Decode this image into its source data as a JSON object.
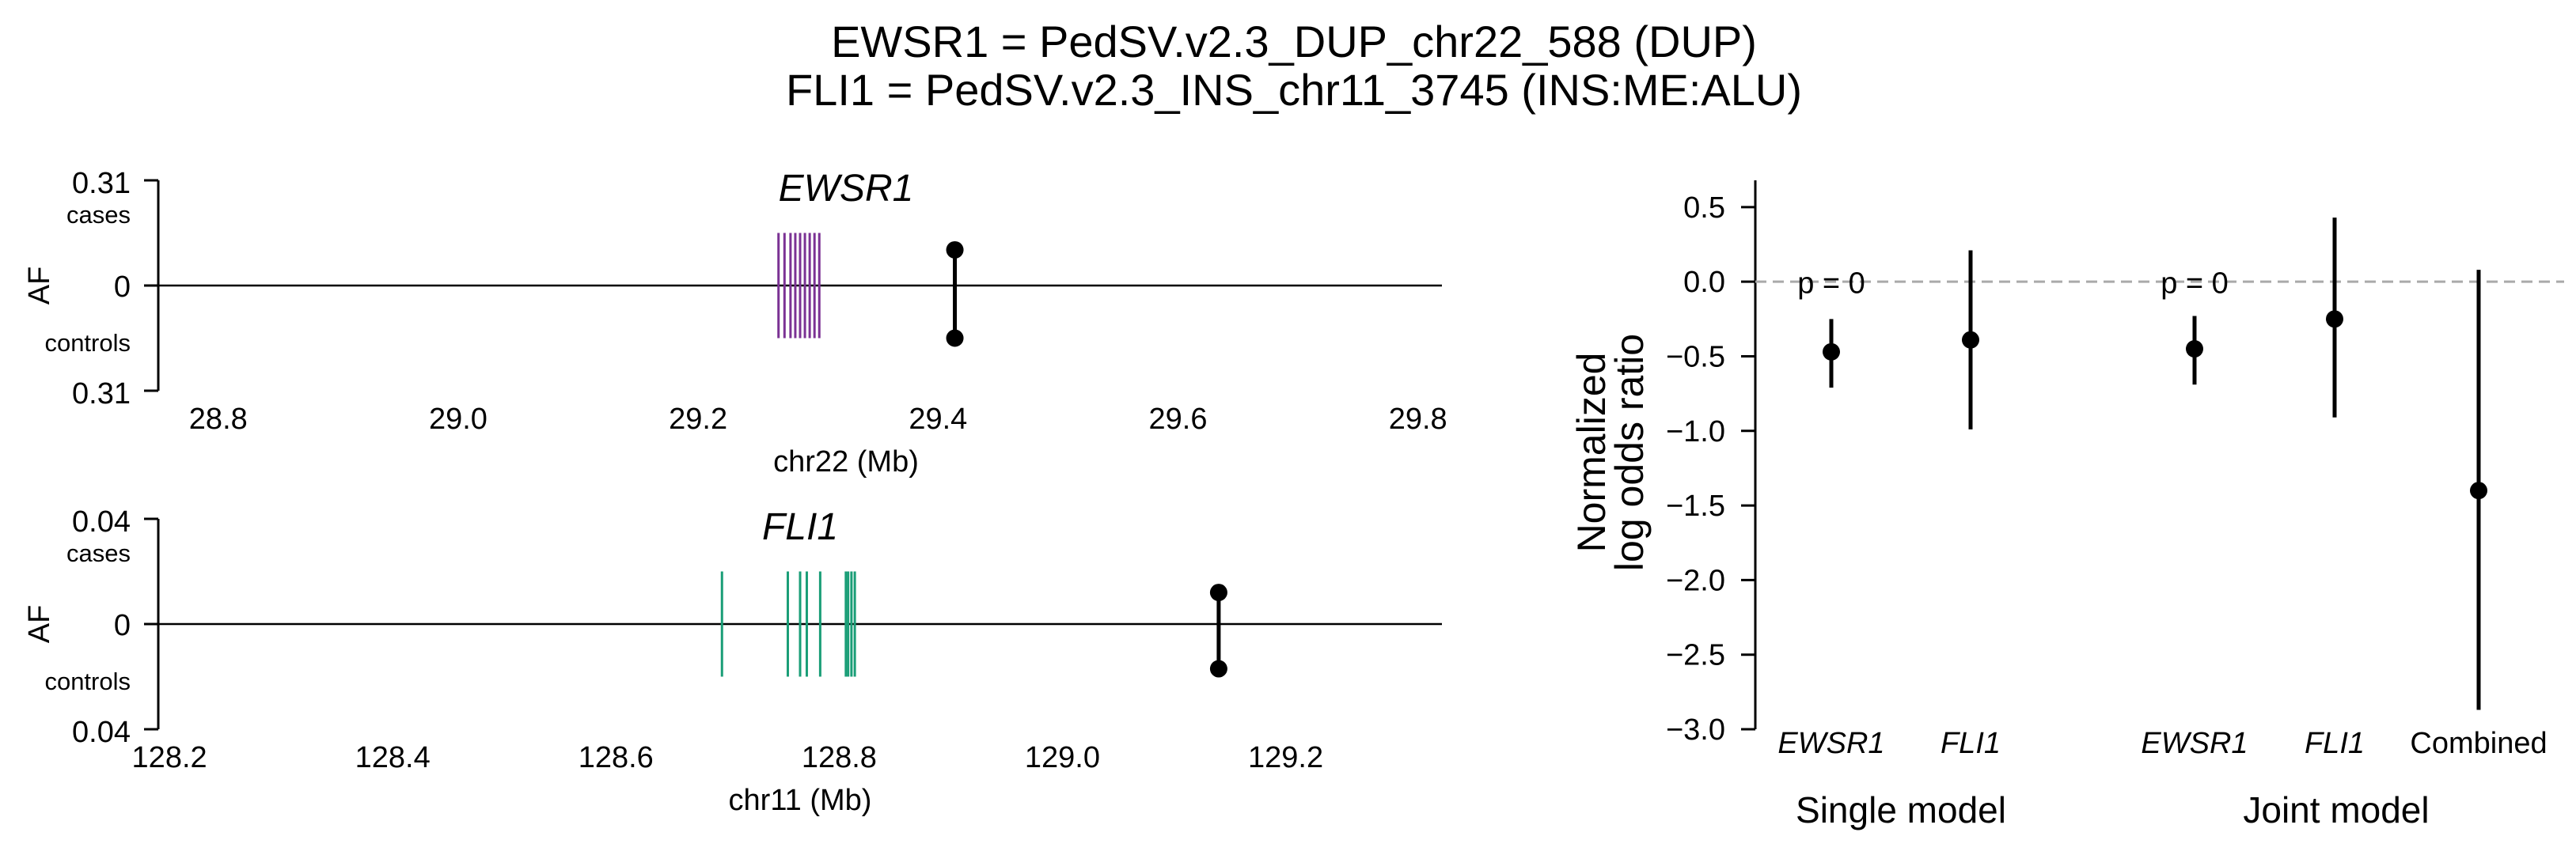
{
  "title": {
    "line1": "EWSR1 = PedSV.v2.3_DUP_chr22_588 (DUP)",
    "line2": "FLI1 = PedSV.v2.3_INS_chr11_3745 (INS:ME:ALU)"
  },
  "colors": {
    "ewsr1": "#7b3294",
    "fli1": "#1a9e77",
    "points": "#000000",
    "reference_line": "#aaaaaa"
  },
  "chart_data": [
    {
      "type": "locus",
      "gene": "EWSR1",
      "xlabel": "chr22 (Mb)",
      "ylabel": "AF",
      "y_top_label": "0.31",
      "y_zero_label": "0",
      "y_bottom_label": "0.31",
      "cases_label": "cases",
      "controls_label": "controls",
      "xlim": [
        28.75,
        29.82
      ],
      "xticks": [
        "28.8",
        "29.0",
        "29.2",
        "29.4",
        "29.6",
        "29.8"
      ],
      "af_max": 0.31,
      "gene_color": "#7b3294",
      "exons": [
        29.267,
        29.272,
        29.277,
        29.281,
        29.285,
        29.289,
        29.293,
        29.297,
        29.301
      ],
      "exon_half_height": 0.155,
      "variant": {
        "position": 29.414,
        "af_cases": 0.105,
        "af_controls": 0.155
      }
    },
    {
      "type": "locus",
      "gene": "FLI1",
      "xlabel": "chr11 (Mb)",
      "ylabel": "AF",
      "y_top_label": "0.04",
      "y_zero_label": "0",
      "y_bottom_label": "0.04",
      "cases_label": "cases",
      "controls_label": "controls",
      "xlim": [
        128.19,
        129.34
      ],
      "xticks": [
        "128.2",
        "128.4",
        "128.6",
        "128.8",
        "129.0",
        "129.2"
      ],
      "af_max": 0.04,
      "gene_color": "#1a9e77",
      "exons": [
        128.695,
        128.754,
        128.765,
        128.771,
        128.783,
        128.806,
        128.808,
        128.811,
        128.814
      ],
      "exon_half_height": 0.02,
      "variant": {
        "position": 129.14,
        "af_cases": 0.012,
        "af_controls": 0.017
      }
    },
    {
      "type": "errorbar",
      "ylabel_line1": "Normalized",
      "ylabel_line2": "log odds ratio",
      "ylim": [
        -3.0,
        0.6
      ],
      "yticks": [
        "0.5",
        "0.0",
        "−0.5",
        "−1.0",
        "−1.5",
        "−2.0",
        "−2.5",
        "−3.0"
      ],
      "reference_line": 0.0,
      "categories": [
        "EWSR1",
        "FLI1",
        "EWSR1",
        "FLI1",
        "Combined"
      ],
      "italic": [
        true,
        true,
        true,
        true,
        false
      ],
      "groups": [
        "Single model",
        "Joint model"
      ],
      "estimates": [
        -0.47,
        -0.39,
        -0.45,
        -0.25,
        -1.4
      ],
      "ci_low": [
        -0.71,
        -0.99,
        -0.69,
        -0.91,
        -2.87
      ],
      "ci_high": [
        -0.25,
        0.21,
        -0.23,
        0.43,
        0.08
      ],
      "p_values": [
        "p = 0",
        "",
        "p = 0",
        "",
        ""
      ]
    }
  ]
}
